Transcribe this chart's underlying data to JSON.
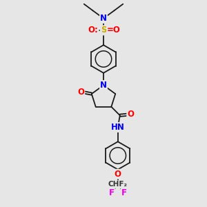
{
  "bg_color": "#e6e6e6",
  "bond_color": "#1a1a1a",
  "bond_width": 1.3,
  "atom_colors": {
    "N": "#0000ee",
    "O": "#ff0000",
    "S": "#ccaa00",
    "F": "#ee00ee",
    "C": "#1a1a1a",
    "H": "#555555"
  },
  "font_size": 8.5,
  "small_font": 7.5,
  "fig_w": 3.0,
  "fig_h": 3.0,
  "dpi": 100,
  "xlim": [
    0,
    10
  ],
  "ylim": [
    0,
    10
  ]
}
